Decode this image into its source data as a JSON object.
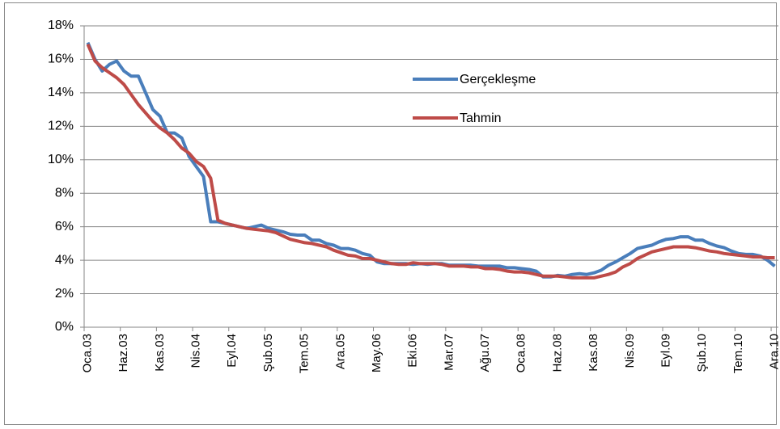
{
  "chart_data": {
    "type": "line",
    "categories": [
      "Oca.03",
      null,
      null,
      null,
      null,
      "Haz.03",
      null,
      null,
      null,
      null,
      "Kas.03",
      null,
      null,
      null,
      null,
      "Nis.04",
      null,
      null,
      null,
      null,
      "Eyl.04",
      null,
      null,
      null,
      null,
      "Şub.05",
      null,
      null,
      null,
      null,
      "Tem.05",
      null,
      null,
      null,
      null,
      "Ara.05",
      null,
      null,
      null,
      null,
      "May.06",
      null,
      null,
      null,
      null,
      "Eki.06",
      null,
      null,
      null,
      null,
      "Mar.07",
      null,
      null,
      null,
      null,
      "Ağu.07",
      null,
      null,
      null,
      null,
      "Oca.08",
      null,
      null,
      null,
      null,
      "Haz.08",
      null,
      null,
      null,
      null,
      "Kas.08",
      null,
      null,
      null,
      null,
      "Nis.09",
      null,
      null,
      null,
      null,
      "Eyl.09",
      null,
      null,
      null,
      null,
      "Şub.10",
      null,
      null,
      null,
      null,
      "Tem.10",
      null,
      null,
      null,
      null,
      "Ara.10"
    ],
    "series": [
      {
        "name": "Gerçekleşme",
        "color": "#4a7ebb",
        "values": [
          17.0,
          16.0,
          15.3,
          15.7,
          15.9,
          15.3,
          15.0,
          15.0,
          14.0,
          13.0,
          12.6,
          11.6,
          11.6,
          11.3,
          10.2,
          9.6,
          9.0,
          6.3,
          6.3,
          6.2,
          6.1,
          6.0,
          5.9,
          6.0,
          6.1,
          5.9,
          5.8,
          5.7,
          5.55,
          5.5,
          5.5,
          5.2,
          5.2,
          5.0,
          4.9,
          4.7,
          4.7,
          4.6,
          4.4,
          4.3,
          3.9,
          3.8,
          3.8,
          3.8,
          3.8,
          3.75,
          3.8,
          3.75,
          3.8,
          3.8,
          3.7,
          3.7,
          3.7,
          3.7,
          3.65,
          3.65,
          3.65,
          3.65,
          3.55,
          3.55,
          3.5,
          3.45,
          3.35,
          3.0,
          3.0,
          3.1,
          3.05,
          3.15,
          3.2,
          3.15,
          3.25,
          3.4,
          3.7,
          3.9,
          4.15,
          4.4,
          4.7,
          4.8,
          4.9,
          5.1,
          5.25,
          5.3,
          5.4,
          5.4,
          5.2,
          5.2,
          5.0,
          4.85,
          4.75,
          4.55,
          4.4,
          4.35,
          4.35,
          4.25,
          4.0,
          3.65
        ]
      },
      {
        "name": "Tahmin",
        "color": "#be4b48",
        "values": [
          16.9,
          15.9,
          15.5,
          15.2,
          14.9,
          14.5,
          13.9,
          13.3,
          12.8,
          12.3,
          11.9,
          11.6,
          11.2,
          10.7,
          10.4,
          9.9,
          9.6,
          8.9,
          6.4,
          6.2,
          6.1,
          6.0,
          5.9,
          5.85,
          5.8,
          5.75,
          5.65,
          5.45,
          5.25,
          5.15,
          5.05,
          5.0,
          4.9,
          4.8,
          4.6,
          4.45,
          4.3,
          4.25,
          4.1,
          4.1,
          4.0,
          3.9,
          3.8,
          3.75,
          3.75,
          3.85,
          3.8,
          3.8,
          3.8,
          3.75,
          3.65,
          3.65,
          3.65,
          3.6,
          3.6,
          3.5,
          3.5,
          3.45,
          3.35,
          3.3,
          3.3,
          3.25,
          3.15,
          3.05,
          3.05,
          3.05,
          3.0,
          2.95,
          2.95,
          2.95,
          2.95,
          3.05,
          3.15,
          3.3,
          3.6,
          3.8,
          4.1,
          4.3,
          4.5,
          4.6,
          4.7,
          4.8,
          4.8,
          4.8,
          4.75,
          4.65,
          4.55,
          4.5,
          4.4,
          4.35,
          4.3,
          4.25,
          4.2,
          4.2,
          4.15,
          4.15
        ]
      }
    ],
    "ylim": [
      0,
      18
    ],
    "yticks": [
      {
        "value": 0,
        "label": "0%"
      },
      {
        "value": 2,
        "label": "2%"
      },
      {
        "value": 4,
        "label": "4%"
      },
      {
        "value": 6,
        "label": "6%"
      },
      {
        "value": 8,
        "label": "8%"
      },
      {
        "value": 10,
        "label": "10%"
      },
      {
        "value": 12,
        "label": "12%"
      },
      {
        "value": 14,
        "label": "14%"
      },
      {
        "value": 16,
        "label": "16%"
      },
      {
        "value": 18,
        "label": "18%"
      }
    ],
    "grid": true,
    "legend": "upper center"
  }
}
